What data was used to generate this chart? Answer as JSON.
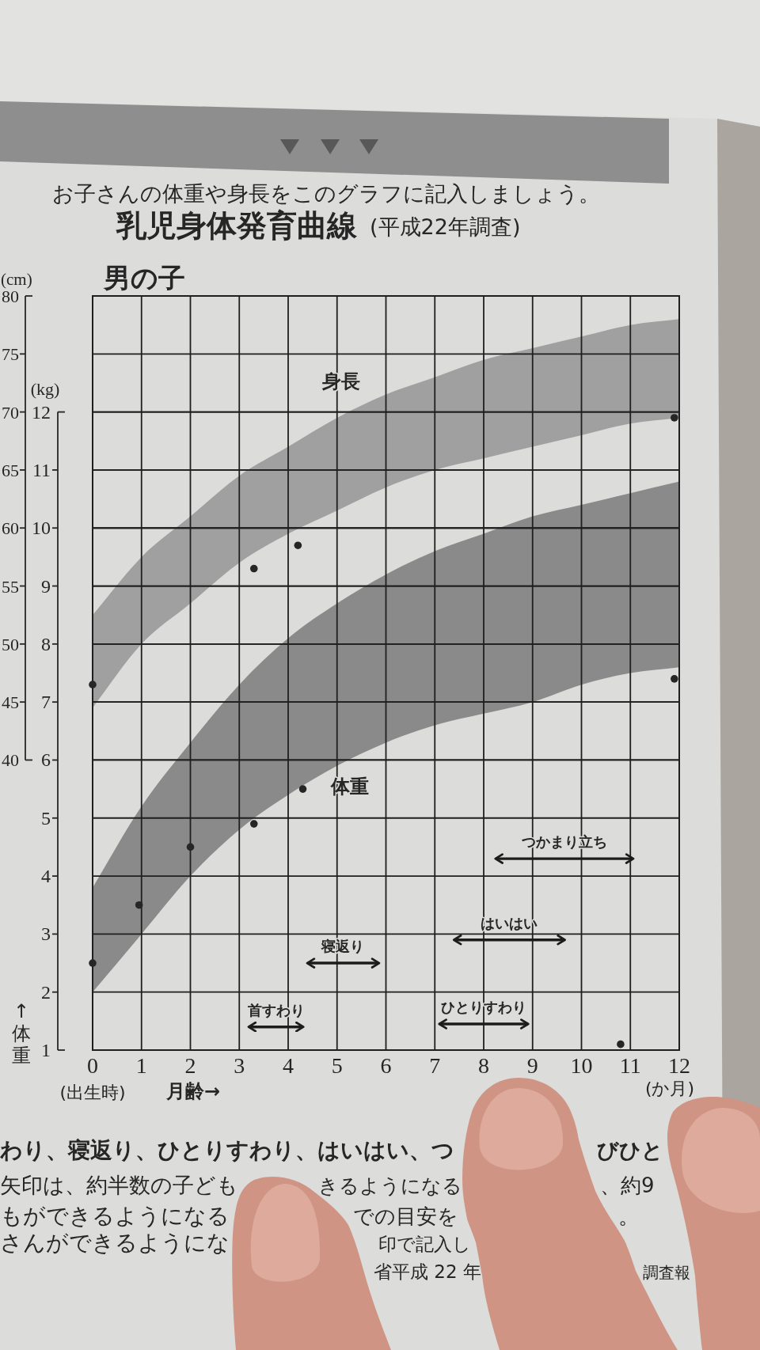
{
  "chart_data": {
    "type": "area",
    "title": "乳児身体発育曲線",
    "subtitle": "(平成22年調査)",
    "xlabel": "月齢→",
    "ylabel": "(kg)",
    "y2label": "(cm)",
    "xlim": [
      0,
      12
    ],
    "xticks": [
      0,
      1,
      2,
      3,
      4,
      5,
      6,
      7,
      8,
      9,
      10,
      11,
      12
    ],
    "ylim": [
      1,
      14
    ],
    "yticks": [
      1,
      2,
      3,
      4,
      5,
      6,
      7,
      8,
      9,
      10,
      11,
      12
    ],
    "y2lim": [
      15,
      80
    ],
    "y2ticks": [
      40,
      45,
      50,
      55,
      60,
      65,
      70,
      75,
      80
    ],
    "grid": true,
    "series": [
      {
        "type": "area",
        "axis": "y2",
        "color": "#a0a0a0",
        "x": [
          0,
          1,
          2,
          3,
          4,
          5,
          6,
          7,
          8,
          9,
          10,
          11,
          12
        ],
        "values": [
          null,
          null,
          null,
          null,
          null,
          null,
          null,
          null,
          null,
          null,
          null,
          null,
          null
        ],
        "lower": [
          44.5,
          50,
          53.5,
          57,
          59.5,
          61.5,
          63.5,
          65,
          66,
          67,
          68,
          69,
          69.5
        ],
        "upper": [
          52.5,
          57.5,
          61,
          64.5,
          67,
          69.5,
          71.5,
          73,
          74.5,
          75.5,
          76.5,
          77.5,
          78
        ]
      },
      {
        "type": "area",
        "color": "#8a8a8a",
        "x": [
          0,
          1,
          2,
          3,
          4,
          5,
          6,
          7,
          8,
          9,
          10,
          11,
          12
        ],
        "values": [
          null,
          null,
          null,
          null,
          null,
          null,
          null,
          null,
          null,
          null,
          null,
          null,
          null
        ],
        "lower": [
          2.0,
          3.0,
          4.0,
          4.8,
          5.4,
          5.9,
          6.3,
          6.6,
          6.8,
          7.0,
          7.3,
          7.5,
          7.6
        ],
        "upper": [
          3.8,
          5.2,
          6.3,
          7.3,
          8.1,
          8.7,
          9.2,
          9.6,
          9.9,
          10.2,
          10.4,
          10.6,
          10.8
        ]
      },
      {
        "type": "scatter",
        "axis": "y2",
        "color": "#262626",
        "marker": "circle",
        "x": [
          0,
          3.3,
          4.2,
          11.9
        ],
        "values": [
          46.5,
          56.5,
          58.5,
          69.5
        ]
      },
      {
        "type": "scatter",
        "color": "#262626",
        "marker": "circle",
        "x": [
          0,
          0.95,
          2,
          3.3,
          4.3,
          10.8,
          11.9
        ],
        "values": [
          2.5,
          3.5,
          4.5,
          4.9,
          5.5,
          1.1,
          7.4
        ]
      },
      {
        "name": "首すわり",
        "type": "line",
        "color": "#1c1c1c",
        "x": [
          3.2,
          4.3
        ],
        "values": [
          1.4,
          1.4
        ]
      },
      {
        "name": "寝返り",
        "type": "line",
        "color": "#1c1c1c",
        "x": [
          4.4,
          5.85
        ],
        "values": [
          2.5,
          2.5
        ]
      },
      {
        "name": "ひとりすわり",
        "type": "line",
        "color": "#1c1c1c",
        "x": [
          7.1,
          8.9
        ],
        "values": [
          1.45,
          1.45
        ]
      },
      {
        "name": "はいはい",
        "type": "line",
        "color": "#1c1c1c",
        "x": [
          7.4,
          9.65
        ],
        "values": [
          2.9,
          2.9
        ]
      },
      {
        "name": "つかまり立ち",
        "type": "line",
        "color": "#1c1c1c",
        "x": [
          8.25,
          11.05
        ],
        "values": [
          4.3,
          4.3
        ]
      }
    ],
    "annotations": [
      "お子さんの体重や身長をこのグラフに記入しましょう。",
      "男の子",
      "↑体重",
      "(出生時)",
      "(か月)",
      "わり、寝返り、ひとりすわり、はいはい、つ",
      "びひと",
      "矢印は、約半数の子ども",
      "きるようになる",
      "、約9",
      "もができるようになる",
      "での目安を",
      "。",
      "さんができるようにな",
      "印で記入し",
      "省平成 22 年",
      "調査報",
      "身長",
      "体重"
    ]
  }
}
